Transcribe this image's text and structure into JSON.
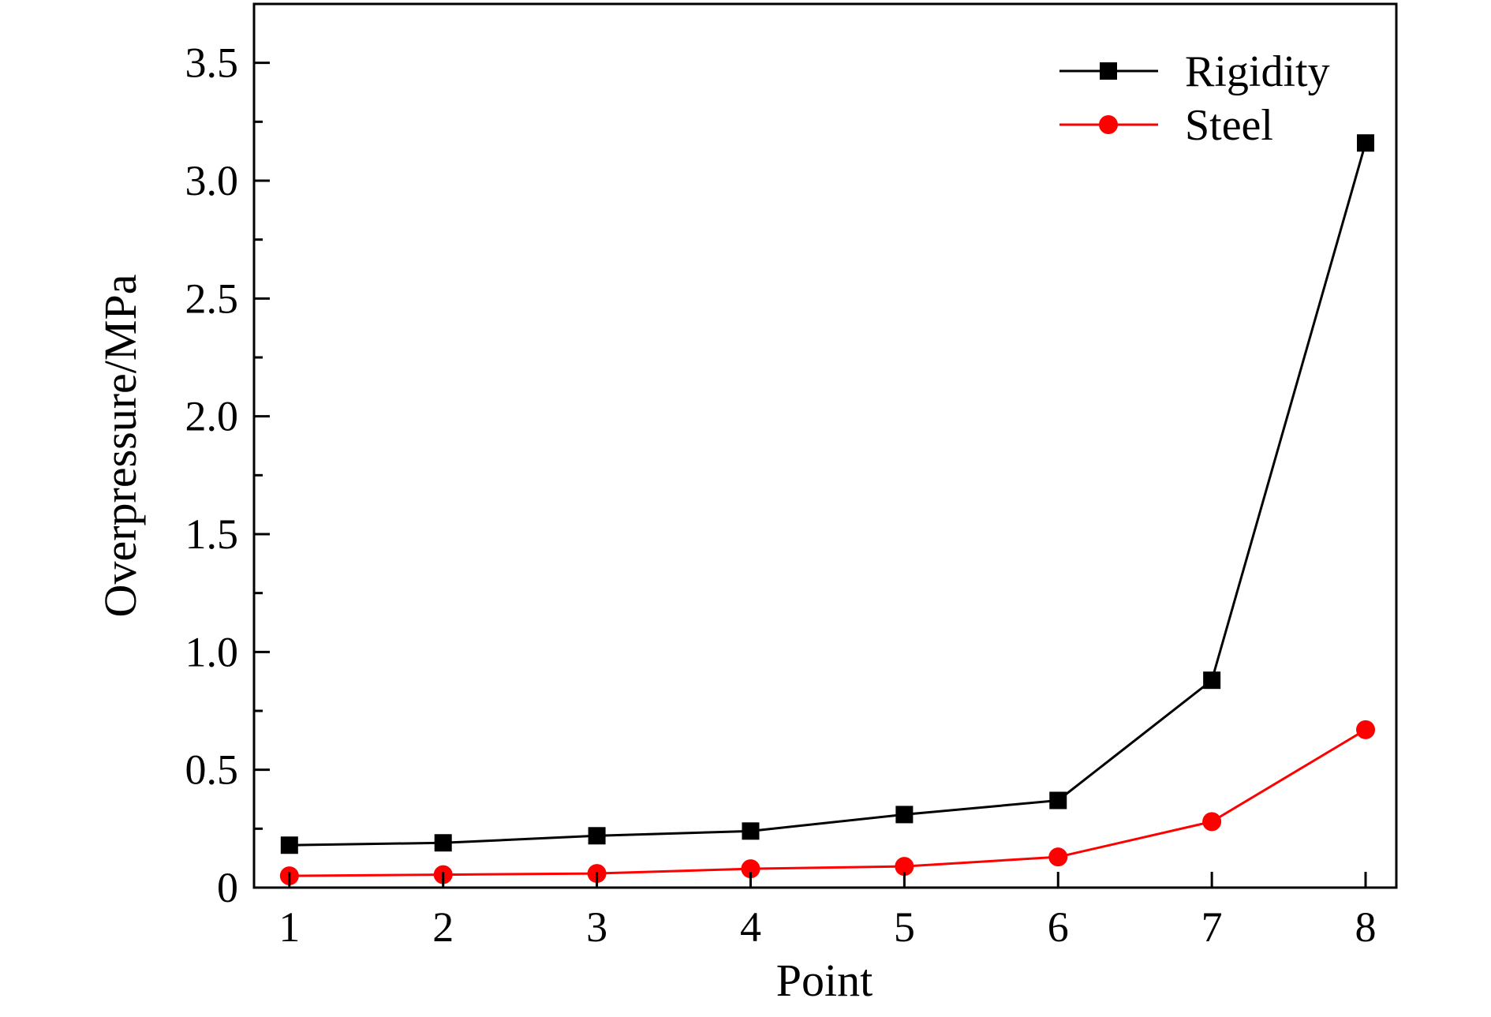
{
  "chart_data": {
    "type": "line",
    "title": "",
    "xlabel": "Point",
    "ylabel": "Overpressure/MPa",
    "x": [
      1,
      2,
      3,
      4,
      5,
      6,
      7,
      8
    ],
    "x_ticks": [
      "1",
      "2",
      "3",
      "4",
      "5",
      "6",
      "7",
      "8"
    ],
    "xlim": [
      0.77,
      8.2
    ],
    "ylim": [
      0,
      3.75
    ],
    "y_ticks": [
      "0",
      "0.5",
      "1.0",
      "1.5",
      "2.0",
      "2.5",
      "3.0",
      "3.5"
    ],
    "grid": false,
    "legend_position": "top-right",
    "series": [
      {
        "name": "Rigidity",
        "color": "#000000",
        "marker": "square",
        "values": [
          0.18,
          0.19,
          0.22,
          0.24,
          0.31,
          0.37,
          0.88,
          3.16
        ]
      },
      {
        "name": "Steel",
        "color": "#ff0000",
        "marker": "circle",
        "values": [
          0.05,
          0.055,
          0.06,
          0.08,
          0.09,
          0.13,
          0.28,
          0.67
        ]
      }
    ]
  }
}
